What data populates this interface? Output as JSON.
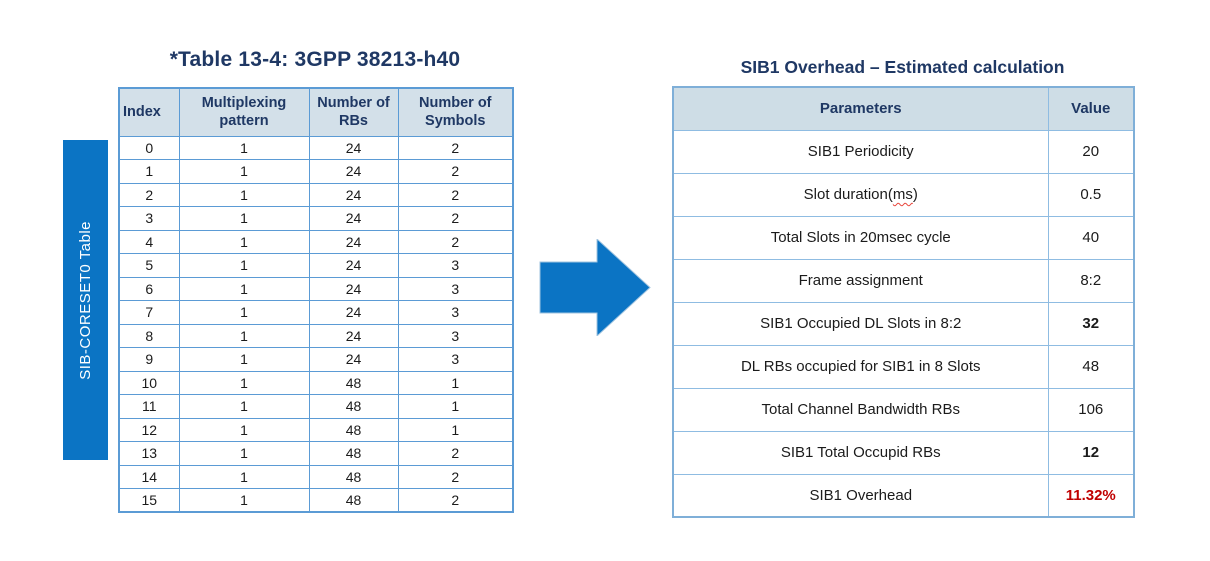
{
  "left_panel": {
    "title": "*Table 13-4: 3GPP 38213-h40",
    "side_label": "SIB-CORESET0 Table",
    "table": {
      "headers": [
        "Index",
        "Multiplexing pattern",
        "Number of RBs",
        "Number of Symbols"
      ],
      "rows": [
        [
          "0",
          "1",
          "24",
          "2"
        ],
        [
          "1",
          "1",
          "24",
          "2"
        ],
        [
          "2",
          "1",
          "24",
          "2"
        ],
        [
          "3",
          "1",
          "24",
          "2"
        ],
        [
          "4",
          "1",
          "24",
          "2"
        ],
        [
          "5",
          "1",
          "24",
          "3"
        ],
        [
          "6",
          "1",
          "24",
          "3"
        ],
        [
          "7",
          "1",
          "24",
          "3"
        ],
        [
          "8",
          "1",
          "24",
          "3"
        ],
        [
          "9",
          "1",
          "24",
          "3"
        ],
        [
          "10",
          "1",
          "48",
          "1"
        ],
        [
          "11",
          "1",
          "48",
          "1"
        ],
        [
          "12",
          "1",
          "48",
          "1"
        ],
        [
          "13",
          "1",
          "48",
          "2"
        ],
        [
          "14",
          "1",
          "48",
          "2"
        ],
        [
          "15",
          "1",
          "48",
          "2"
        ]
      ]
    }
  },
  "arrow": {
    "icon": "right-arrow",
    "color": "#0B74C4"
  },
  "right_panel": {
    "title": "SIB1 Overhead – Estimated calculation",
    "table": {
      "headers": [
        "Parameters",
        "Value"
      ],
      "rows": [
        {
          "parameter": "SIB1 Periodicity",
          "value": "20"
        },
        {
          "parameter": "Slot duration(ms)",
          "value": "0.5",
          "spellcheck_underline": "ms"
        },
        {
          "parameter": "Total Slots in 20msec cycle",
          "value": "40"
        },
        {
          "parameter": "Frame assignment",
          "value": "8:2"
        },
        {
          "parameter": "SIB1 Occupied DL Slots in 8:2",
          "value": "32",
          "value_bold": true
        },
        {
          "parameter": "DL RBs occupied for SIB1 in 8 Slots",
          "value": "48"
        },
        {
          "parameter": "Total Channel Bandwidth RBs",
          "value": "106"
        },
        {
          "parameter": "SIB1 Total Occupid RBs",
          "value": "12",
          "value_bold": true
        },
        {
          "parameter": "SIB1 Overhead",
          "value": "11.32%",
          "value_bold": true,
          "value_color": "#C00000"
        }
      ]
    }
  },
  "colors": {
    "title_navy": "#1F3864",
    "banner_blue": "#0B74C4",
    "header_fill_left": "#D3E0E9",
    "header_fill_right": "#CEDDE6",
    "grid_blue_left": "#5B9BD5",
    "grid_blue_right": "#8FBCE2",
    "value_red": "#C00000"
  }
}
